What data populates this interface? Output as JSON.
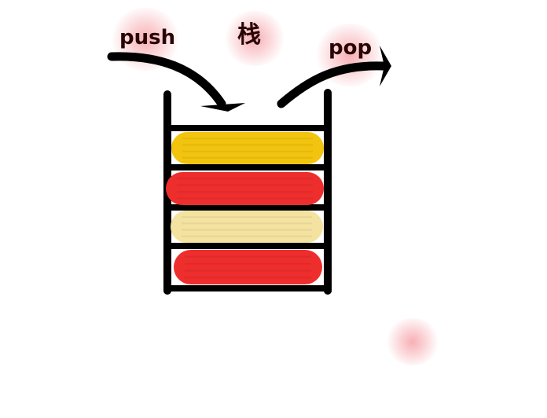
{
  "labels": {
    "push": "push",
    "stack": "栈",
    "pop": "pop"
  },
  "colors": {
    "outline": "#000000",
    "label_text": "#2a0505",
    "glow": "#f06e78"
  },
  "stack_items": [
    {
      "color": "#f2c40f"
    },
    {
      "color": "#ee2d2d"
    },
    {
      "color": "#f4e3a0"
    },
    {
      "color": "#ee2d2d"
    }
  ]
}
